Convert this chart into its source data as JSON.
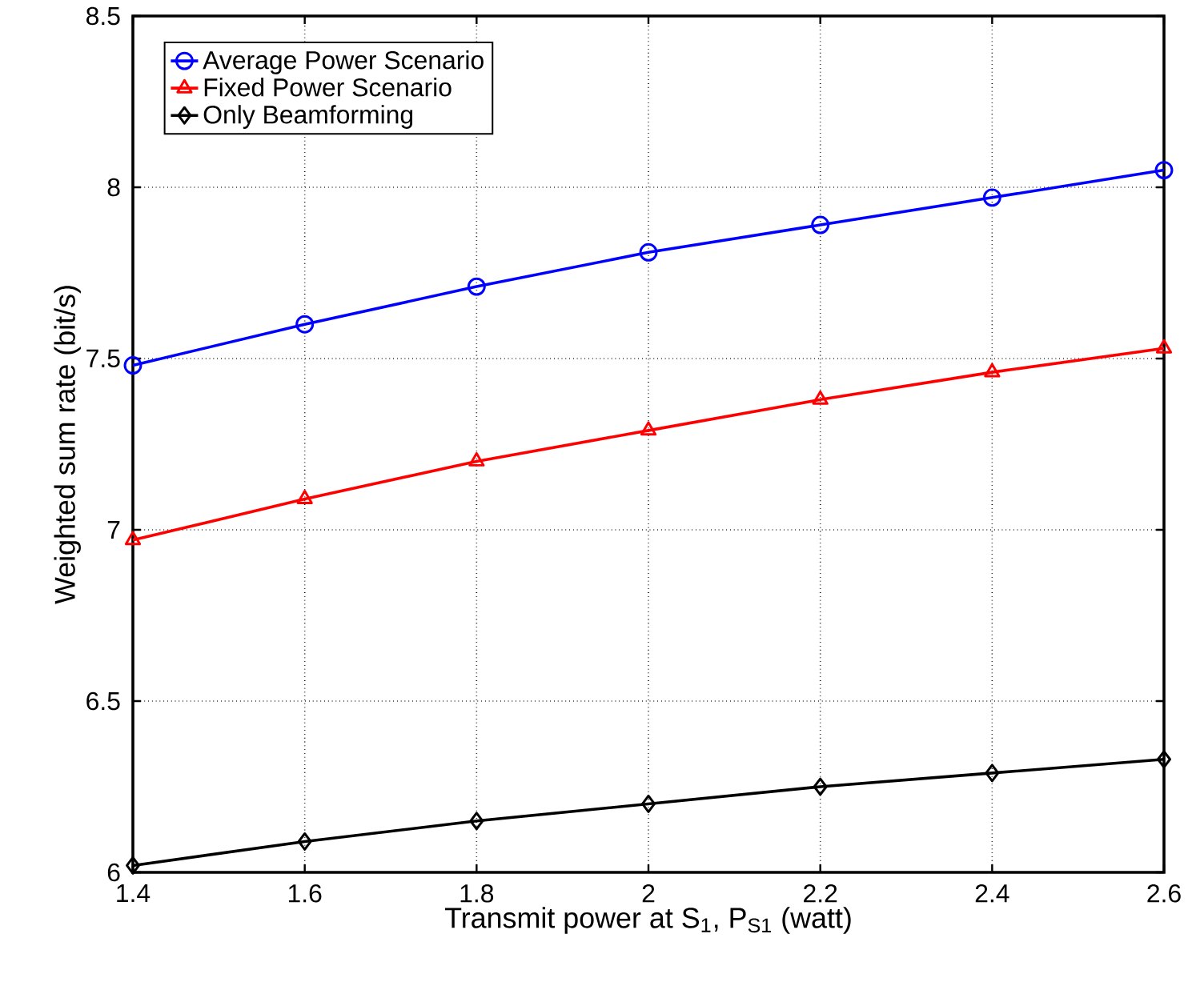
{
  "chart_data": {
    "type": "line",
    "xlabel": "Transmit power at S$_{1}$, P$_{S1}$ (watt)",
    "ylabel": "Weighted sum rate (bit/s)",
    "x": [
      1.4,
      1.6,
      1.8,
      2.0,
      2.2,
      2.4,
      2.6
    ],
    "series": [
      {
        "name": "Average Power Scenario",
        "color": "#0000ff",
        "marker": "circle",
        "values": [
          7.48,
          7.6,
          7.71,
          7.81,
          7.89,
          7.97,
          8.05
        ]
      },
      {
        "name": "Fixed Power Scenario",
        "color": "#ff0000",
        "marker": "triangle",
        "values": [
          6.97,
          7.09,
          7.2,
          7.29,
          7.38,
          7.46,
          7.53
        ]
      },
      {
        "name": "Only Beamforming",
        "color": "#000000",
        "marker": "diamond",
        "values": [
          6.02,
          6.09,
          6.15,
          6.2,
          6.25,
          6.29,
          6.33
        ]
      }
    ],
    "xlim": [
      1.4,
      2.6
    ],
    "xticks": [
      1.4,
      1.6,
      1.8,
      2,
      2.2,
      2.4,
      2.6
    ],
    "ylim": [
      6,
      8.5
    ],
    "yticks": [
      6,
      6.5,
      7,
      7.5,
      8,
      8.5
    ],
    "grid": true,
    "legend": "top left",
    "line_style": "solid"
  }
}
